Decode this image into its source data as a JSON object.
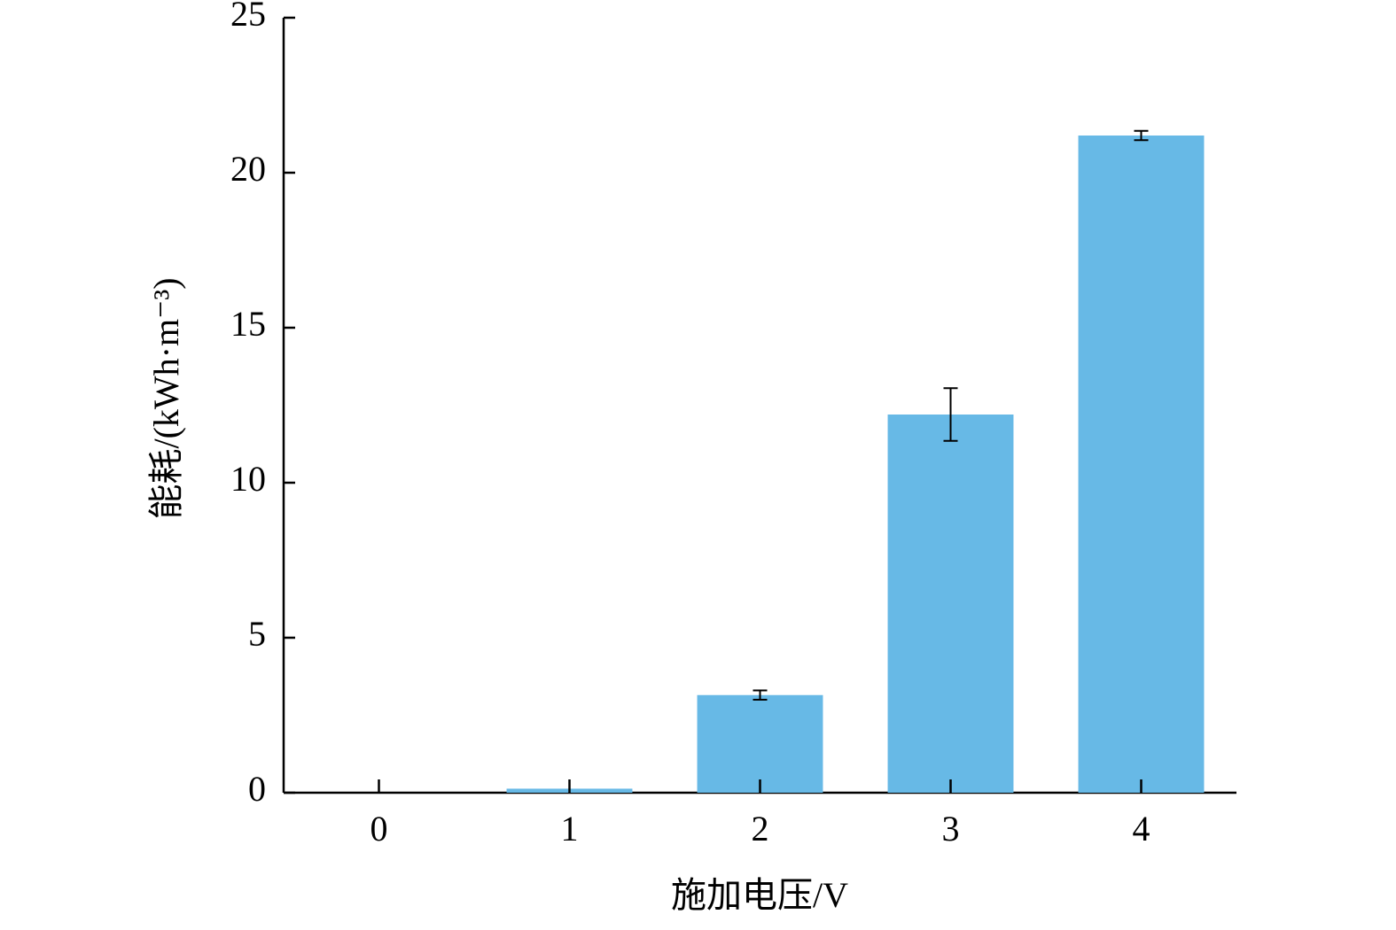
{
  "chart_data": {
    "type": "bar",
    "x_label": "施加电压/V",
    "y_label": "能耗/(kWh·m⁻³)",
    "categories": [
      "0",
      "1",
      "2",
      "3",
      "4"
    ],
    "values": [
      0,
      0.13,
      3.15,
      12.2,
      21.2
    ],
    "errors": [
      0,
      0,
      0.15,
      0.85,
      0.15
    ],
    "color": "#67b9e6",
    "ylim": [
      0,
      25
    ],
    "yticks": [
      0,
      5,
      10,
      15,
      20,
      25
    ],
    "grid": false
  }
}
